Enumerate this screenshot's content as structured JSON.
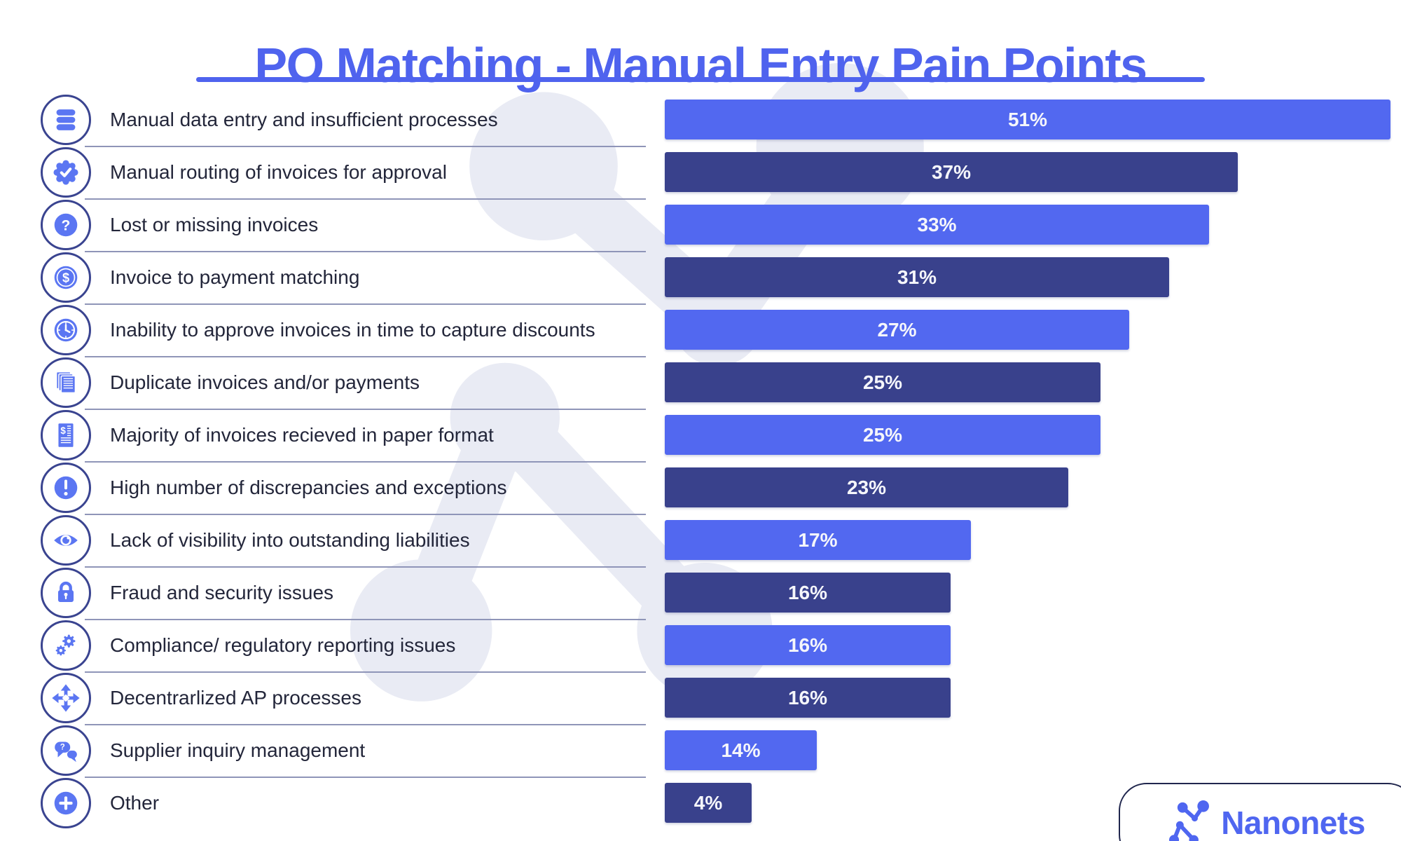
{
  "title": "PO Matching - Manual Entry Pain Points",
  "colors": {
    "accent": "#4F63EE",
    "bar_light": "#5268F0",
    "bar_dark": "#39418C",
    "icon_blue": "#5B76F2",
    "icon_ring": "#3A4490",
    "label_text": "#23263A",
    "value_text": "#F5F6FB",
    "separator": "#8F95B8",
    "watermark": "#E9EBF4",
    "logo_blue": "#4F66F0",
    "card_border": "#20264D"
  },
  "branding": {
    "logo_text": "Nanonets",
    "watermark_icon": "nanonets-molecule"
  },
  "chart_data": {
    "type": "bar",
    "orientation": "horizontal",
    "title": "PO Matching - Manual Entry Pain Points",
    "value_format": "percent",
    "legend": "none",
    "grid": false,
    "categories": [
      "Manual data entry and insufficient processes",
      "Manual routing of invoices for approval",
      "Lost or missing invoices",
      "Invoice to payment matching",
      "Inability to approve invoices in time to capture discounts",
      "Duplicate invoices and/or payments",
      "Majority of invoices recieved in paper format",
      "High number of discrepancies and exceptions",
      "Lack of visibility into outstanding liabilities",
      "Fraud and security issues",
      "Compliance/ regulatory reporting issues",
      "Decentrarlized AP processes",
      "Supplier inquiry management",
      "Other"
    ],
    "values": [
      51,
      37,
      33,
      31,
      27,
      25,
      25,
      23,
      17,
      16,
      16,
      16,
      14,
      4
    ],
    "points": [
      {
        "label": "Manual data entry and insufficient processes",
        "value": 51,
        "value_label": "51%",
        "icon": "database-icon",
        "shade": "light",
        "width_frac": 1.0
      },
      {
        "label": "Manual routing of invoices for approval",
        "value": 37,
        "value_label": "37%",
        "icon": "verified-badge-icon",
        "shade": "dark",
        "width_frac": 0.79
      },
      {
        "label": "Lost or missing invoices",
        "value": 33,
        "value_label": "33%",
        "icon": "question-circle-icon",
        "shade": "light",
        "width_frac": 0.75
      },
      {
        "label": "Invoice to payment matching",
        "value": 31,
        "value_label": "31%",
        "icon": "dollar-coin-icon",
        "shade": "dark",
        "width_frac": 0.695
      },
      {
        "label": "Inability to approve invoices in time to capture discounts",
        "value": 27,
        "value_label": "27%",
        "icon": "clock-icon",
        "shade": "light",
        "width_frac": 0.64
      },
      {
        "label": "Duplicate invoices and/or payments",
        "value": 25,
        "value_label": "25%",
        "icon": "documents-stack-icon",
        "shade": "dark",
        "width_frac": 0.6
      },
      {
        "label": "Majority of invoices recieved in paper format",
        "value": 25,
        "value_label": "25%",
        "icon": "invoice-icon",
        "shade": "light",
        "width_frac": 0.6
      },
      {
        "label": "High number of discrepancies and exceptions",
        "value": 23,
        "value_label": "23%",
        "icon": "alert-circle-icon",
        "shade": "dark",
        "width_frac": 0.556
      },
      {
        "label": "Lack of visibility into outstanding liabilities",
        "value": 17,
        "value_label": "17%",
        "icon": "eye-icon",
        "shade": "light",
        "width_frac": 0.422
      },
      {
        "label": "Fraud and security issues",
        "value": 16,
        "value_label": "16%",
        "icon": "lock-icon",
        "shade": "dark",
        "width_frac": 0.394
      },
      {
        "label": "Compliance/ regulatory reporting issues",
        "value": 16,
        "value_label": "16%",
        "icon": "gears-icon",
        "shade": "light",
        "width_frac": 0.394
      },
      {
        "label": "Decentrarlized AP processes",
        "value": 16,
        "value_label": "16%",
        "icon": "arrows-icon",
        "shade": "dark",
        "width_frac": 0.394
      },
      {
        "label": "Supplier inquiry management",
        "value": 14,
        "value_label": "14%",
        "icon": "chat-icon",
        "shade": "light",
        "width_frac": 0.209
      },
      {
        "label": "Other",
        "value": 4,
        "value_label": "4%",
        "icon": "plus-circle-icon",
        "shade": "dark",
        "width_frac": 0.12
      }
    ]
  }
}
